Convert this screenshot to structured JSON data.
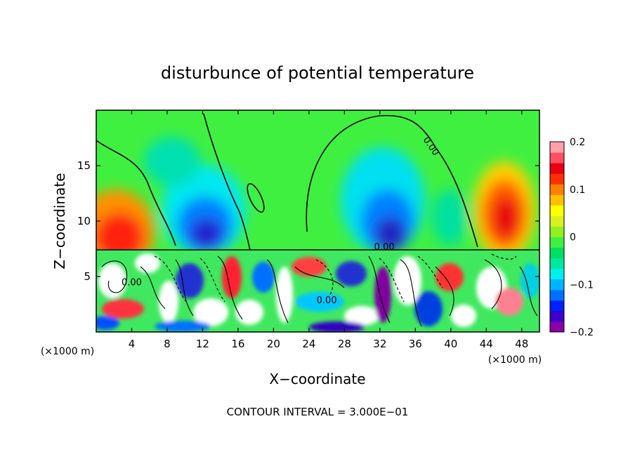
{
  "chart_data": {
    "type": "heatmap",
    "title": "disturbunce of potential temperature",
    "xlabel": "X−coordinate",
    "ylabel": "Z−coordinate",
    "x_unit_left": "(×1000 m)",
    "x_unit_right": "(×1000 m)",
    "x_ticks": [
      {
        "value": 4,
        "label": "4"
      },
      {
        "value": 8,
        "label": "8"
      },
      {
        "value": 12,
        "label": "12"
      },
      {
        "value": 16,
        "label": "16"
      },
      {
        "value": 20,
        "label": "20"
      },
      {
        "value": 24,
        "label": "24"
      },
      {
        "value": 28,
        "label": "28"
      },
      {
        "value": 32,
        "label": "32"
      },
      {
        "value": 36,
        "label": "36"
      },
      {
        "value": 40,
        "label": "40"
      },
      {
        "value": 44,
        "label": "44"
      },
      {
        "value": 48,
        "label": "48"
      }
    ],
    "y_ticks": [
      {
        "value": 5,
        "label": "5"
      },
      {
        "value": 10,
        "label": "10"
      },
      {
        "value": 15,
        "label": "15"
      }
    ],
    "xlim": [
      0,
      50
    ],
    "ylim": [
      0,
      20
    ],
    "colorbar": {
      "range": [
        -0.2,
        0.2
      ],
      "ticks": [
        {
          "value": 0.2,
          "label": "0.2"
        },
        {
          "value": 0.1,
          "label": "0.1"
        },
        {
          "value": 0,
          "label": "0"
        },
        {
          "value": -0.1,
          "label": "−0.1"
        },
        {
          "value": -0.2,
          "label": "−0.2"
        }
      ],
      "colors": [
        "#8b00a8",
        "#3c00c8",
        "#0020ff",
        "#0070ff",
        "#00b4ff",
        "#00f0f0",
        "#00e8a0",
        "#00e060",
        "#40f040",
        "#90f020",
        "#d8f020",
        "#ffff00",
        "#ffc000",
        "#ff8000",
        "#ff3000",
        "#e80010",
        "#ff5060",
        "#ffa0a8"
      ]
    },
    "contour_labels": [
      {
        "text": "0.00",
        "x": 37.5,
        "y": 16.6
      },
      {
        "text": "0.00",
        "x": 4.0,
        "y": 4.2
      },
      {
        "text": "0.00",
        "x": 26.0,
        "y": 2.6
      },
      {
        "text": "0.00",
        "x": 32.5,
        "y": 7.4
      }
    ],
    "footer": "CONTOUR INTERVAL = 3.000E−01"
  }
}
